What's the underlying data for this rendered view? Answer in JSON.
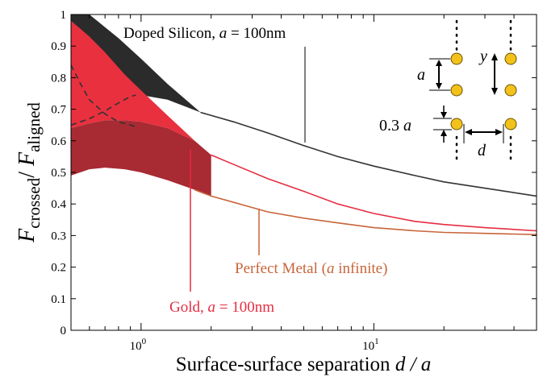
{
  "chart_data": {
    "type": "line",
    "title": "",
    "xlabel": {
      "main": "Surface-surface separation ",
      "var": "d / a"
    },
    "ylabel": {
      "f": "F",
      "num": "crossed",
      "sep": "/ ",
      "f2": "F",
      "den": "aligned"
    },
    "x_scale": "log",
    "xlim": [
      0.5,
      50
    ],
    "ylim": [
      0,
      1
    ],
    "x_ticks": [
      {
        "value": 1,
        "base": "10",
        "exp": "0"
      },
      {
        "value": 10,
        "base": "10",
        "exp": "1"
      }
    ],
    "y_ticks": [
      0,
      0.1,
      0.2,
      0.3,
      0.4,
      0.5,
      0.6,
      0.7,
      0.8,
      0.9,
      1
    ],
    "y_tick_labels": [
      "0",
      "0.1",
      "0.2",
      "0.3",
      "0.4",
      "0.5",
      "0.6",
      "0.7",
      "0.8",
      "0.9",
      "1"
    ],
    "colors": {
      "silicon": "#333333",
      "silicon_band": "#2b2b2b",
      "gold": "#e52d42",
      "gold_band": "#e8303f",
      "gold_band_dark": "#a82a33",
      "perfect": "#c8653a",
      "dashed": "#333333",
      "particle": "#f2c21b"
    },
    "series": [
      {
        "key": "silicon",
        "label_pre": "Doped Silicon, ",
        "label_var": "a",
        "label_post": " = 100nm",
        "band_upper": {
          "x": [
            0.5,
            0.6,
            0.8,
            1.0,
            1.3,
            1.8
          ],
          "y": [
            1.0,
            1.0,
            0.925,
            0.86,
            0.78,
            0.69
          ]
        },
        "band_lower": {
          "x": [
            0.5,
            0.6,
            0.8,
            1.0,
            1.3,
            1.8
          ],
          "y": [
            0.66,
            0.685,
            0.73,
            0.745,
            0.73,
            0.69
          ]
        },
        "curve": {
          "x": [
            1.8,
            2.5,
            3.5,
            5,
            7,
            10,
            15,
            20,
            30,
            50
          ],
          "y": [
            0.69,
            0.66,
            0.625,
            0.585,
            0.55,
            0.52,
            0.49,
            0.47,
            0.45,
            0.425
          ]
        }
      },
      {
        "key": "gold",
        "label_pre": "Gold, ",
        "label_var": "a",
        "label_post": " = 100nm",
        "band_upper": {
          "x": [
            0.5,
            0.6,
            0.7,
            0.85,
            1.0,
            1.3,
            1.7,
            2.0
          ],
          "y": [
            0.98,
            0.93,
            0.88,
            0.81,
            0.76,
            0.68,
            0.6,
            0.555
          ]
        },
        "band_mid": {
          "x": [
            0.5,
            0.6,
            0.7,
            0.85,
            1.0,
            1.3,
            1.7,
            2.0
          ],
          "y": [
            0.64,
            0.655,
            0.665,
            0.665,
            0.66,
            0.64,
            0.6,
            0.555
          ]
        },
        "band_lower": {
          "x": [
            0.5,
            0.6,
            0.7,
            0.85,
            1.0,
            1.3,
            1.7,
            2.0
          ],
          "y": [
            0.49,
            0.51,
            0.515,
            0.51,
            0.5,
            0.475,
            0.445,
            0.425
          ]
        },
        "curve": {
          "x": [
            2.0,
            2.5,
            3.5,
            5,
            7,
            10,
            15,
            20,
            30,
            50
          ],
          "y": [
            0.555,
            0.525,
            0.48,
            0.44,
            0.4,
            0.37,
            0.345,
            0.335,
            0.325,
            0.315
          ]
        }
      },
      {
        "key": "perfect",
        "label_pre": "Perfect Metal (",
        "label_var": "a",
        "label_post": " infinite)",
        "curve": {
          "x": [
            1.7,
            2.0,
            2.5,
            3.5,
            5,
            7,
            10,
            15,
            20,
            30,
            50
          ],
          "y": [
            0.445,
            0.425,
            0.405,
            0.375,
            0.355,
            0.34,
            0.325,
            0.315,
            0.31,
            0.307,
            0.303
          ]
        }
      }
    ],
    "dashed": {
      "x": [
        0.5,
        0.55,
        0.6,
        0.7,
        0.8,
        0.9,
        0.95
      ],
      "y": [
        0.84,
        0.78,
        0.73,
        0.685,
        0.66,
        0.65,
        0.645
      ]
    },
    "dashed2": {
      "x": [
        0.5,
        0.6,
        0.7,
        0.8,
        0.9,
        0.95
      ],
      "y": [
        0.65,
        0.67,
        0.695,
        0.72,
        0.74,
        0.745
      ]
    },
    "inset": {
      "label_a": "a",
      "label_y": "y",
      "label_gap": "0.3 ",
      "label_gap_var": "a",
      "label_d": "d"
    }
  }
}
